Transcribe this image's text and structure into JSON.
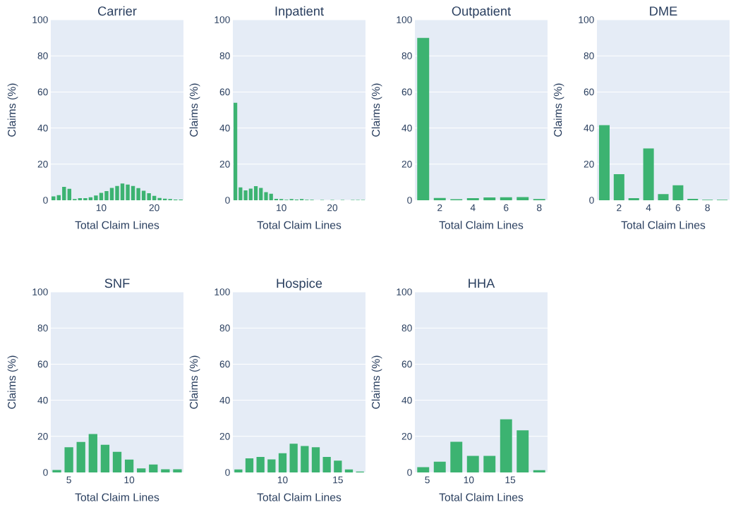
{
  "chart_data": [
    {
      "type": "histogram",
      "title": "Carrier",
      "xlabel": "Total Claim Lines",
      "ylabel": "Claims (%)",
      "color": "#3cb371",
      "grid": "y",
      "xlim": [
        0.5,
        25.5
      ],
      "xticks": [
        10,
        20
      ],
      "ylim": [
        0,
        100
      ],
      "yticks": [
        0,
        20,
        40,
        60,
        80,
        100
      ],
      "bins": [
        0.5,
        1.5,
        2.5,
        3.5,
        4.5,
        5.5,
        6.5,
        7.5,
        8.5,
        9.5,
        10.5,
        11.5,
        12.5,
        13.5,
        14.5,
        15.5,
        16.5,
        17.5,
        18.5,
        19.5,
        20.5,
        21.5,
        22.5,
        23.5,
        24.5,
        25.5
      ],
      "values": [
        2.1,
        2.8,
        7.4,
        6.3,
        0.7,
        1.2,
        1.2,
        1.7,
        2.6,
        4.1,
        5.1,
        6.8,
        7.9,
        9.3,
        8.7,
        7.9,
        6.7,
        5.3,
        3.9,
        2.4,
        1.3,
        0.9,
        0.7,
        0.4,
        0.4
      ]
    },
    {
      "type": "histogram",
      "title": "Inpatient",
      "xlabel": "Total Claim Lines",
      "ylabel": "Claims (%)",
      "color": "#3cb371",
      "grid": "y",
      "xlim": [
        0.5,
        26.5
      ],
      "xticks": [
        10,
        20
      ],
      "ylim": [
        0,
        100
      ],
      "yticks": [
        0,
        20,
        40,
        60,
        80,
        100
      ],
      "bins": [
        0.5,
        1.5,
        2.5,
        3.5,
        4.5,
        5.5,
        6.5,
        7.5,
        8.5,
        9.5,
        10.5,
        11.5,
        12.5,
        13.5,
        14.5,
        15.5,
        16.5,
        17.5,
        18.5,
        19.5,
        20.5,
        21.5,
        22.5,
        23.5,
        24.5,
        25.5,
        26.5
      ],
      "values": [
        54,
        7.1,
        5.5,
        6.4,
        7.8,
        6.8,
        4.5,
        3.6,
        0.8,
        0.7,
        0.3,
        0.7,
        0.4,
        0.7,
        0.3,
        0.3,
        null,
        0.2,
        null,
        0.2,
        null,
        0.2,
        null,
        0.2,
        0.2,
        0.2
      ]
    },
    {
      "type": "histogram",
      "title": "Outpatient",
      "xlabel": "Total Claim Lines",
      "ylabel": "Claims (%)",
      "color": "#3cb371",
      "grid": "y",
      "xlim": [
        0.5,
        8.5
      ],
      "xticks": [
        2,
        4,
        6,
        8
      ],
      "ylim": [
        0,
        100
      ],
      "yticks": [
        0,
        20,
        40,
        60,
        80,
        100
      ],
      "bins": [
        0.5,
        1.5,
        2.5,
        3.5,
        4.5,
        5.5,
        6.5,
        7.5,
        8.5
      ],
      "values": [
        90,
        1.3,
        0.6,
        1.2,
        1.6,
        1.7,
        1.8,
        0.7
      ]
    },
    {
      "type": "histogram",
      "title": "DME",
      "xlabel": "Total Claim Lines",
      "ylabel": "Claims (%)",
      "color": "#3cb371",
      "grid": "y",
      "xlim": [
        0.5,
        9.5
      ],
      "xticks": [
        2,
        4,
        6,
        8
      ],
      "ylim": [
        0,
        100
      ],
      "yticks": [
        0,
        20,
        40,
        60,
        80,
        100
      ],
      "bins": [
        0.5,
        1.5,
        2.5,
        3.5,
        4.5,
        5.5,
        6.5,
        7.5,
        8.5,
        9.5
      ],
      "values": [
        41.6,
        14.5,
        1.2,
        28.7,
        3.4,
        8.3,
        0.8,
        0.3,
        0.3
      ]
    },
    {
      "type": "histogram",
      "title": "SNF",
      "xlabel": "Total Claim Lines",
      "ylabel": "Claims (%)",
      "color": "#3cb371",
      "grid": "y",
      "xlim": [
        3.5,
        14.5
      ],
      "xticks": [
        5,
        10
      ],
      "ylim": [
        0,
        100
      ],
      "yticks": [
        0,
        20,
        40,
        60,
        80,
        100
      ],
      "bins": [
        3.5,
        4.5,
        5.5,
        6.5,
        7.5,
        8.5,
        9.5,
        10.5,
        11.5,
        12.5,
        13.5,
        14.5
      ],
      "values": [
        1.4,
        14.0,
        16.9,
        21.3,
        15.3,
        11.4,
        7.1,
        2.2,
        4.4,
        1.8,
        1.8
      ]
    },
    {
      "type": "histogram",
      "title": "Hospice",
      "xlabel": "Total Claim Lines",
      "ylabel": "Claims (%)",
      "color": "#3cb371",
      "grid": "y",
      "xlim": [
        5.5,
        17.5
      ],
      "xticks": [
        10,
        15
      ],
      "ylim": [
        0,
        100
      ],
      "yticks": [
        0,
        20,
        40,
        60,
        80,
        100
      ],
      "bins": [
        5.5,
        6.5,
        7.5,
        8.5,
        9.5,
        10.5,
        11.5,
        12.5,
        13.5,
        14.5,
        15.5,
        16.5,
        17.5
      ],
      "values": [
        1.7,
        7.8,
        8.6,
        7.2,
        10.6,
        15.9,
        14.6,
        14.0,
        8.6,
        6.5,
        1.7,
        0.5
      ]
    },
    {
      "type": "histogram",
      "title": "HHA",
      "xlabel": "Total Claim Lines",
      "ylabel": "Claims (%)",
      "color": "#3cb371",
      "grid": "y",
      "xlim": [
        3.5,
        19.5
      ],
      "xticks": [
        5,
        10,
        15
      ],
      "ylim": [
        0,
        100
      ],
      "yticks": [
        0,
        20,
        40,
        60,
        80,
        100
      ],
      "bins": [
        3.5,
        5.5,
        7.5,
        9.5,
        11.5,
        13.5,
        15.5,
        17.5,
        19.5
      ],
      "values": [
        2.9,
        6.0,
        17.0,
        9.2,
        9.2,
        29.5,
        23.3,
        1.3
      ]
    }
  ]
}
